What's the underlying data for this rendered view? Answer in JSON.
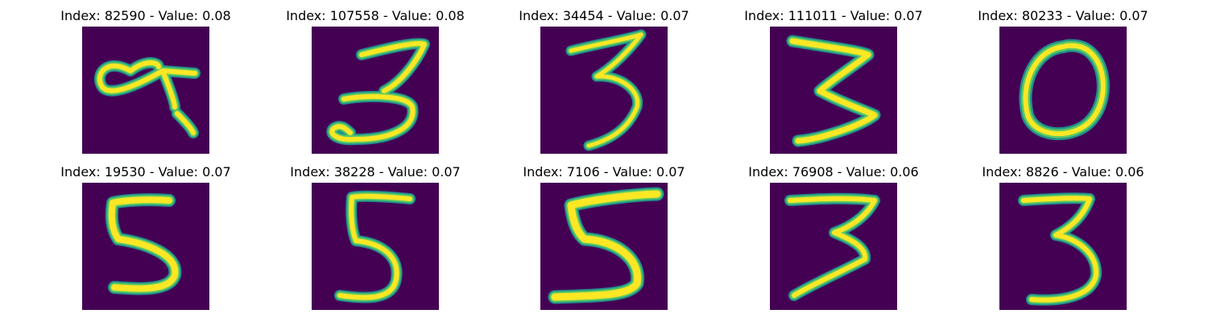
{
  "colors": {
    "background": "#440154",
    "edge": "#21918c",
    "mid": "#5ec962",
    "core": "#fde725"
  },
  "panels": [
    {
      "title": "Index: 82590 - Value: 0.08",
      "digit": "9"
    },
    {
      "title": "Index: 107558 - Value: 0.08",
      "digit": "3"
    },
    {
      "title": "Index: 34454 - Value: 0.07",
      "digit": "3"
    },
    {
      "title": "Index: 111011 - Value: 0.07",
      "digit": "3"
    },
    {
      "title": "Index: 80233 - Value: 0.07",
      "digit": "0"
    },
    {
      "title": "Index: 19530 - Value: 0.07",
      "digit": "5"
    },
    {
      "title": "Index: 38228 - Value: 0.07",
      "digit": "5"
    },
    {
      "title": "Index: 7106 - Value: 0.07",
      "digit": "5"
    },
    {
      "title": "Index: 76908 - Value: 0.06",
      "digit": "3"
    },
    {
      "title": "Index: 8826 - Value: 0.06",
      "digit": "3"
    }
  ]
}
